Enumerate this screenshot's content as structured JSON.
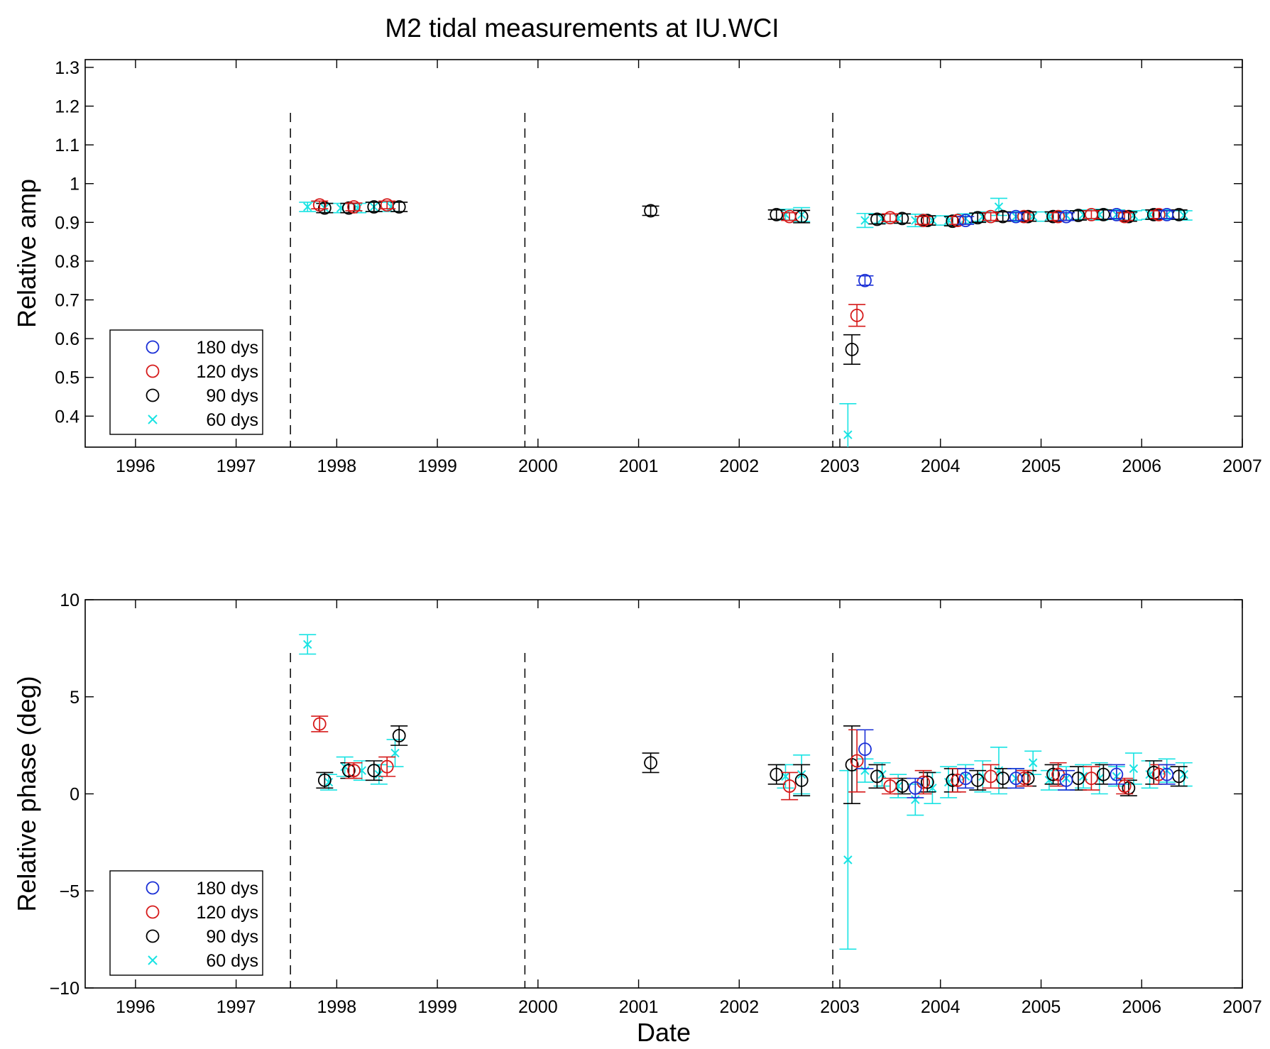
{
  "title": "M2 tidal measurements at IU.WCI",
  "chart_data": [
    {
      "type": "scatter",
      "ylabel": "Relative amp",
      "xlabel": "",
      "xlim": [
        1995.5,
        2007
      ],
      "ylim": [
        0.32,
        1.32
      ],
      "xticks": [
        1996,
        1997,
        1998,
        1999,
        2000,
        2001,
        2002,
        2003,
        2004,
        2005,
        2006,
        2007
      ],
      "yticks": [
        0.4,
        0.5,
        0.6,
        0.7,
        0.8,
        0.9,
        1,
        1.1,
        1.2,
        1.3
      ],
      "ytick_labels": [
        "0.4",
        "0.5",
        "0.6",
        "0.7",
        "0.8",
        "0.9",
        "1",
        "1.1",
        "1.2",
        "1.3"
      ],
      "vlines": [
        1997.54,
        1999.87,
        2002.93
      ],
      "legend": {
        "position": "bottom-left"
      },
      "series": [
        {
          "name": "180 dys",
          "color": "#1a2fd6",
          "marker": "circle",
          "points": [
            [
              2003.25,
              0.75,
              0.012
            ],
            [
              2004.25,
              0.905,
              0.01
            ],
            [
              2004.75,
              0.915,
              0.01
            ],
            [
              2005.25,
              0.915,
              0.01
            ],
            [
              2005.75,
              0.92,
              0.01
            ],
            [
              2006.25,
              0.92,
              0.01
            ]
          ]
        },
        {
          "name": "120 dys",
          "color": "#d61a1a",
          "marker": "circle",
          "points": [
            [
              1997.83,
              0.945,
              0.01
            ],
            [
              1998.17,
              0.94,
              0.01
            ],
            [
              1998.5,
              0.945,
              0.01
            ],
            [
              2002.5,
              0.915,
              0.01
            ],
            [
              2003.17,
              0.66,
              0.028
            ],
            [
              2003.5,
              0.912,
              0.01
            ],
            [
              2003.83,
              0.905,
              0.01
            ],
            [
              2004.17,
              0.905,
              0.01
            ],
            [
              2004.5,
              0.915,
              0.01
            ],
            [
              2004.83,
              0.915,
              0.01
            ],
            [
              2005.17,
              0.915,
              0.01
            ],
            [
              2005.5,
              0.92,
              0.01
            ],
            [
              2005.83,
              0.915,
              0.01
            ],
            [
              2006.17,
              0.92,
              0.01
            ]
          ]
        },
        {
          "name": "90 dys",
          "color": "#000000",
          "marker": "circle",
          "points": [
            [
              1997.88,
              0.937,
              0.012
            ],
            [
              1998.12,
              0.937,
              0.012
            ],
            [
              1998.37,
              0.94,
              0.012
            ],
            [
              1998.62,
              0.94,
              0.012
            ],
            [
              2001.12,
              0.93,
              0.012
            ],
            [
              2002.37,
              0.92,
              0.012
            ],
            [
              2002.62,
              0.915,
              0.016
            ],
            [
              2003.12,
              0.572,
              0.038
            ],
            [
              2003.37,
              0.908,
              0.012
            ],
            [
              2003.62,
              0.91,
              0.012
            ],
            [
              2003.87,
              0.905,
              0.012
            ],
            [
              2004.12,
              0.903,
              0.012
            ],
            [
              2004.37,
              0.912,
              0.012
            ],
            [
              2004.62,
              0.915,
              0.012
            ],
            [
              2004.87,
              0.915,
              0.012
            ],
            [
              2005.12,
              0.915,
              0.012
            ],
            [
              2005.37,
              0.918,
              0.012
            ],
            [
              2005.62,
              0.92,
              0.012
            ],
            [
              2005.87,
              0.915,
              0.012
            ],
            [
              2006.12,
              0.92,
              0.012
            ],
            [
              2006.37,
              0.92,
              0.012
            ]
          ]
        },
        {
          "name": "60 dys",
          "color": "#19e3e3",
          "marker": "x",
          "points": [
            [
              1997.71,
              0.94,
              0.012
            ],
            [
              1997.88,
              0.937,
              0.012
            ],
            [
              1998.04,
              0.937,
              0.012
            ],
            [
              1998.21,
              0.937,
              0.012
            ],
            [
              1998.37,
              0.94,
              0.012
            ],
            [
              1998.54,
              0.94,
              0.012
            ],
            [
              2002.46,
              0.92,
              0.014
            ],
            [
              2002.62,
              0.92,
              0.018
            ],
            [
              2003.08,
              0.352,
              0.08
            ],
            [
              2003.25,
              0.905,
              0.018
            ],
            [
              2003.42,
              0.91,
              0.012
            ],
            [
              2003.58,
              0.91,
              0.012
            ],
            [
              2003.75,
              0.905,
              0.016
            ],
            [
              2003.92,
              0.905,
              0.012
            ],
            [
              2004.08,
              0.905,
              0.012
            ],
            [
              2004.25,
              0.91,
              0.012
            ],
            [
              2004.42,
              0.915,
              0.012
            ],
            [
              2004.58,
              0.94,
              0.022
            ],
            [
              2004.75,
              0.915,
              0.012
            ],
            [
              2004.92,
              0.915,
              0.012
            ],
            [
              2005.08,
              0.915,
              0.012
            ],
            [
              2005.25,
              0.918,
              0.012
            ],
            [
              2005.42,
              0.92,
              0.012
            ],
            [
              2005.58,
              0.92,
              0.014
            ],
            [
              2005.75,
              0.92,
              0.012
            ],
            [
              2005.92,
              0.918,
              0.012
            ],
            [
              2006.08,
              0.92,
              0.012
            ],
            [
              2006.25,
              0.92,
              0.012
            ],
            [
              2006.42,
              0.918,
              0.012
            ]
          ]
        }
      ]
    },
    {
      "type": "scatter",
      "ylabel": "Relative phase (deg)",
      "xlabel": "Date",
      "xlim": [
        1995.5,
        2007
      ],
      "ylim": [
        -10,
        10
      ],
      "xticks": [
        1996,
        1997,
        1998,
        1999,
        2000,
        2001,
        2002,
        2003,
        2004,
        2005,
        2006,
        2007
      ],
      "yticks": [
        -10,
        -5,
        0,
        5,
        10
      ],
      "ytick_labels": [
        "−10",
        "−5",
        "0",
        "5",
        "10"
      ],
      "vlines": [
        1997.54,
        1999.87,
        2002.93
      ],
      "legend": {
        "position": "bottom-left"
      },
      "series": [
        {
          "name": "180 dys",
          "color": "#1a2fd6",
          "marker": "circle",
          "points": [
            [
              2003.25,
              2.3,
              1.0
            ],
            [
              2003.75,
              0.3,
              0.5
            ],
            [
              2004.25,
              0.8,
              0.5
            ],
            [
              2004.75,
              0.8,
              0.5
            ],
            [
              2005.25,
              0.7,
              0.5
            ],
            [
              2005.75,
              1.0,
              0.5
            ],
            [
              2006.25,
              1.0,
              0.5
            ]
          ]
        },
        {
          "name": "120 dys",
          "color": "#d61a1a",
          "marker": "circle",
          "points": [
            [
              1997.83,
              3.6,
              0.4
            ],
            [
              1998.17,
              1.2,
              0.4
            ],
            [
              1998.5,
              1.4,
              0.5
            ],
            [
              2002.5,
              0.4,
              0.7
            ],
            [
              2003.17,
              1.7,
              1.6
            ],
            [
              2003.5,
              0.4,
              0.4
            ],
            [
              2003.83,
              0.6,
              0.6
            ],
            [
              2004.17,
              0.7,
              0.6
            ],
            [
              2004.5,
              0.9,
              0.6
            ],
            [
              2004.83,
              0.8,
              0.4
            ],
            [
              2005.17,
              1.0,
              0.6
            ],
            [
              2005.5,
              0.8,
              0.6
            ],
            [
              2005.83,
              0.4,
              0.4
            ],
            [
              2006.17,
              1.0,
              0.5
            ]
          ]
        },
        {
          "name": "90 dys",
          "color": "#000000",
          "marker": "circle",
          "points": [
            [
              1997.88,
              0.7,
              0.4
            ],
            [
              1998.12,
              1.2,
              0.4
            ],
            [
              1998.37,
              1.2,
              0.5
            ],
            [
              1998.62,
              3.0,
              0.5
            ],
            [
              2001.12,
              1.6,
              0.5
            ],
            [
              2002.37,
              1.0,
              0.5
            ],
            [
              2002.62,
              0.7,
              0.8
            ],
            [
              2003.12,
              1.5,
              2.0
            ],
            [
              2003.37,
              0.9,
              0.6
            ],
            [
              2003.62,
              0.4,
              0.4
            ],
            [
              2003.87,
              0.6,
              0.5
            ],
            [
              2004.12,
              0.7,
              0.6
            ],
            [
              2004.37,
              0.7,
              0.5
            ],
            [
              2004.62,
              0.8,
              0.5
            ],
            [
              2004.87,
              0.8,
              0.4
            ],
            [
              2005.12,
              1.0,
              0.5
            ],
            [
              2005.37,
              0.8,
              0.6
            ],
            [
              2005.62,
              1.0,
              0.5
            ],
            [
              2005.87,
              0.3,
              0.4
            ],
            [
              2006.12,
              1.1,
              0.6
            ],
            [
              2006.37,
              0.9,
              0.5
            ]
          ]
        },
        {
          "name": "60 dys",
          "color": "#19e3e3",
          "marker": "x",
          "points": [
            [
              1997.71,
              7.7,
              0.5
            ],
            [
              1997.92,
              0.6,
              0.4
            ],
            [
              1998.08,
              1.4,
              0.5
            ],
            [
              1998.25,
              1.2,
              0.5
            ],
            [
              1998.42,
              1.0,
              0.5
            ],
            [
              1998.58,
              2.1,
              0.7
            ],
            [
              2002.46,
              0.9,
              0.6
            ],
            [
              2002.62,
              1.0,
              1.0
            ],
            [
              2003.08,
              -3.4,
              4.6
            ],
            [
              2003.25,
              1.2,
              0.6
            ],
            [
              2003.42,
              1.0,
              0.6
            ],
            [
              2003.58,
              0.4,
              0.6
            ],
            [
              2003.75,
              -0.3,
              0.8
            ],
            [
              2003.92,
              0.3,
              0.8
            ],
            [
              2004.08,
              0.6,
              0.8
            ],
            [
              2004.25,
              0.9,
              0.6
            ],
            [
              2004.42,
              0.9,
              0.8
            ],
            [
              2004.58,
              1.2,
              1.2
            ],
            [
              2004.75,
              0.8,
              0.5
            ],
            [
              2004.92,
              1.6,
              0.6
            ],
            [
              2005.08,
              0.7,
              0.5
            ],
            [
              2005.25,
              0.8,
              0.6
            ],
            [
              2005.42,
              0.9,
              0.6
            ],
            [
              2005.58,
              0.8,
              0.8
            ],
            [
              2005.75,
              0.9,
              0.5
            ],
            [
              2005.92,
              1.3,
              0.8
            ],
            [
              2006.08,
              1.0,
              0.7
            ],
            [
              2006.25,
              1.2,
              0.6
            ],
            [
              2006.42,
              1.0,
              0.6
            ]
          ]
        }
      ]
    }
  ]
}
